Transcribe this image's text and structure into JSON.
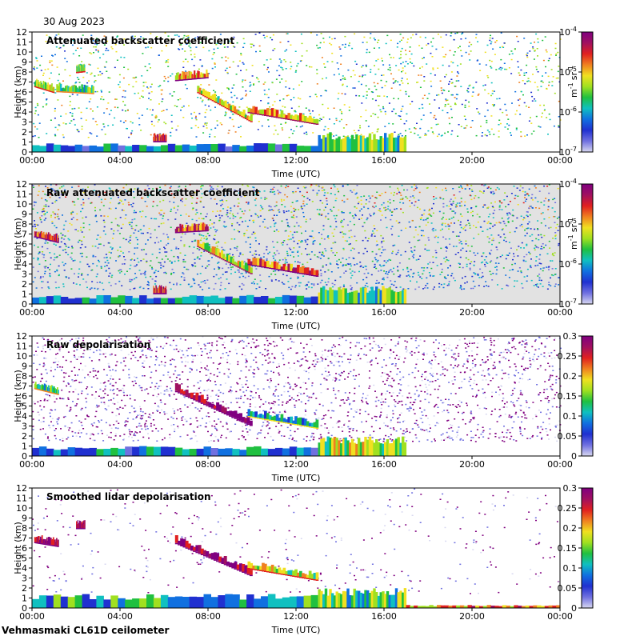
{
  "header": {
    "date": "30 Aug 2023"
  },
  "footer": {
    "site_instrument": "Vehmasmaki CL61D ceilometer"
  },
  "colors": {
    "no_data": "#e2e2e2",
    "background": "#ffffff",
    "colormap": [
      "#d8d8f0",
      "#7070e0",
      "#2030d0",
      "#1070e0",
      "#10c0c0",
      "#20c040",
      "#a0e020",
      "#f0e020",
      "#f08020",
      "#e02020",
      "#a01060",
      "#800080"
    ]
  },
  "chart_data": [
    {
      "type": "heatmap",
      "title": "Attenuated backscatter coefficient",
      "xlabel": "Time (UTC)",
      "ylabel": "Height (km)",
      "xticks": [
        "00:00",
        "04:00",
        "08:00",
        "12:00",
        "16:00",
        "20:00",
        "00:00"
      ],
      "yticks": [
        "0",
        "1",
        "2",
        "3",
        "4",
        "5",
        "6",
        "7",
        "8",
        "9",
        "10",
        "11",
        "12"
      ],
      "xlim_hours": [
        0,
        24
      ],
      "ylim_km": [
        0,
        12
      ],
      "colorbar": {
        "scale": "log",
        "tick_labels": [
          {
            "base": "10",
            "exp": "-7"
          },
          {
            "base": "10",
            "exp": "-6"
          },
          {
            "base": "10",
            "exp": "-5"
          },
          {
            "base": "10",
            "exp": "-4"
          }
        ],
        "unit": {
          "m": "m",
          "m_exp": "-1",
          "sr": "sr",
          "sr_exp": "-1"
        }
      },
      "clouds": [
        {
          "t0": 0.1,
          "t1": 1.0,
          "h0": 6.6,
          "h1": 6.0,
          "level": 0.6
        },
        {
          "t0": 1.1,
          "t1": 2.8,
          "h0": 6.1,
          "h1": 5.9,
          "level": 0.5
        },
        {
          "t0": 2.0,
          "t1": 2.4,
          "h0": 8.0,
          "h1": 8.1,
          "level": 0.55
        },
        {
          "t0": 6.5,
          "t1": 8.0,
          "h0": 7.2,
          "h1": 7.5,
          "level": 0.75
        },
        {
          "t0": 7.5,
          "t1": 10.0,
          "h0": 6.0,
          "h1": 3.0,
          "level": 0.6
        },
        {
          "t0": 9.8,
          "t1": 13.0,
          "h0": 4.0,
          "h1": 2.8,
          "level": 0.7
        },
        {
          "t0": 5.5,
          "t1": 6.1,
          "h0": 1.1,
          "h1": 1.1,
          "level": 0.85
        }
      ],
      "boundary_layer": [
        {
          "t0": 0.0,
          "t1": 13.0,
          "h0": 0.0,
          "h1": 0.9,
          "level": 0.15
        },
        {
          "t0": 13.0,
          "t1": 17.0,
          "h0": 0.0,
          "h1": 2.0,
          "level": 0.3
        }
      ],
      "noise_level": 0.55
    },
    {
      "type": "heatmap",
      "title": "Raw attenuated backscatter coefficient",
      "xlabel": "Time (UTC)",
      "ylabel": "Height (km)",
      "xticks": [
        "00:00",
        "04:00",
        "08:00",
        "12:00",
        "16:00",
        "20:00",
        "00:00"
      ],
      "yticks": [
        "0",
        "1",
        "2",
        "3",
        "4",
        "5",
        "6",
        "7",
        "8",
        "9",
        "10",
        "11",
        "12"
      ],
      "xlim_hours": [
        0,
        24
      ],
      "ylim_km": [
        0,
        12
      ],
      "colorbar": {
        "scale": "log",
        "tick_labels": [
          {
            "base": "10",
            "exp": "-7"
          },
          {
            "base": "10",
            "exp": "-6"
          },
          {
            "base": "10",
            "exp": "-5"
          },
          {
            "base": "10",
            "exp": "-4"
          }
        ],
        "unit": {
          "m": "m",
          "m_exp": "-1",
          "sr": "sr",
          "sr_exp": "-1"
        }
      },
      "clouds": [
        {
          "t0": 0.1,
          "t1": 1.2,
          "h0": 6.8,
          "h1": 6.2,
          "level": 0.85
        },
        {
          "t0": 6.5,
          "t1": 8.0,
          "h0": 7.2,
          "h1": 7.4,
          "level": 0.8
        },
        {
          "t0": 7.5,
          "t1": 10.0,
          "h0": 5.8,
          "h1": 3.0,
          "level": 0.65
        },
        {
          "t0": 9.8,
          "t1": 13.0,
          "h0": 4.0,
          "h1": 2.8,
          "level": 0.8
        },
        {
          "t0": 5.5,
          "t1": 6.1,
          "h0": 1.1,
          "h1": 1.1,
          "level": 0.85
        }
      ],
      "boundary_layer": [
        {
          "t0": 0.0,
          "t1": 13.0,
          "h0": 0.0,
          "h1": 0.9,
          "level": 0.15
        },
        {
          "t0": 13.0,
          "t1": 17.0,
          "h0": 0.0,
          "h1": 1.8,
          "level": 0.3
        }
      ],
      "noise_level": 0.95
    },
    {
      "type": "heatmap",
      "title": "Raw depolarisation",
      "xlabel": "Time (UTC)",
      "ylabel": "Height (km)",
      "xticks": [
        "00:00",
        "04:00",
        "08:00",
        "12:00",
        "16:00",
        "20:00",
        "00:00"
      ],
      "yticks": [
        "0",
        "1",
        "2",
        "3",
        "4",
        "5",
        "6",
        "7",
        "8",
        "9",
        "10",
        "11",
        "12"
      ],
      "xlim_hours": [
        0,
        24
      ],
      "ylim_km": [
        0,
        12
      ],
      "colorbar": {
        "scale": "linear",
        "range": [
          0,
          0.3
        ],
        "tick_labels": [
          "0",
          "0.05",
          "0.1",
          "0.15",
          "0.2",
          "0.25",
          "0.3"
        ]
      },
      "clouds": [
        {
          "t0": 0.1,
          "t1": 1.2,
          "h0": 6.8,
          "h1": 6.2,
          "level": 0.5
        },
        {
          "t0": 6.5,
          "t1": 10.0,
          "h0": 6.5,
          "h1": 3.0,
          "level": 0.95
        },
        {
          "t0": 9.8,
          "t1": 13.0,
          "h0": 4.0,
          "h1": 2.8,
          "level": 0.4
        }
      ],
      "boundary_layer": [
        {
          "t0": 0.0,
          "t1": 13.0,
          "h0": 0.0,
          "h1": 1.0,
          "level": 0.12
        },
        {
          "t0": 13.0,
          "t1": 17.0,
          "h0": 0.0,
          "h1": 2.0,
          "level": 0.35
        }
      ],
      "noise_level": 0.9
    },
    {
      "type": "heatmap",
      "title": "Smoothed lidar depolarisation",
      "xlabel": "Time (UTC)",
      "ylabel": "Height (km)",
      "xticks": [
        "00:00",
        "04:00",
        "08:00",
        "12:00",
        "16:00",
        "20:00",
        "00:00"
      ],
      "yticks": [
        "0",
        "1",
        "2",
        "3",
        "4",
        "5",
        "6",
        "7",
        "8",
        "9",
        "10",
        "11",
        "12"
      ],
      "xlim_hours": [
        0,
        24
      ],
      "ylim_km": [
        0,
        12
      ],
      "colorbar": {
        "scale": "linear",
        "range": [
          0,
          0.3
        ],
        "tick_labels": [
          "0",
          "0.05",
          "0.1",
          "0.15",
          "0.2",
          "0.25",
          "0.3"
        ]
      },
      "clouds": [
        {
          "t0": 0.1,
          "t1": 1.2,
          "h0": 6.6,
          "h1": 6.2,
          "level": 0.95
        },
        {
          "t0": 2.0,
          "t1": 2.4,
          "h0": 8.0,
          "h1": 8.0,
          "level": 0.95
        },
        {
          "t0": 6.5,
          "t1": 10.0,
          "h0": 6.5,
          "h1": 3.2,
          "level": 0.95
        },
        {
          "t0": 9.8,
          "t1": 13.0,
          "h0": 4.0,
          "h1": 2.8,
          "level": 0.6
        }
      ],
      "boundary_layer": [
        {
          "t0": 0.0,
          "t1": 13.0,
          "h0": 0.0,
          "h1": 1.4,
          "level": 0.2
        },
        {
          "t0": 13.0,
          "t1": 17.0,
          "h0": 0.0,
          "h1": 2.0,
          "level": 0.3
        },
        {
          "t0": 17.0,
          "t1": 24.0,
          "h0": 0.0,
          "h1": 0.3,
          "level": 0.5
        }
      ],
      "noise_level": 0.15
    }
  ]
}
